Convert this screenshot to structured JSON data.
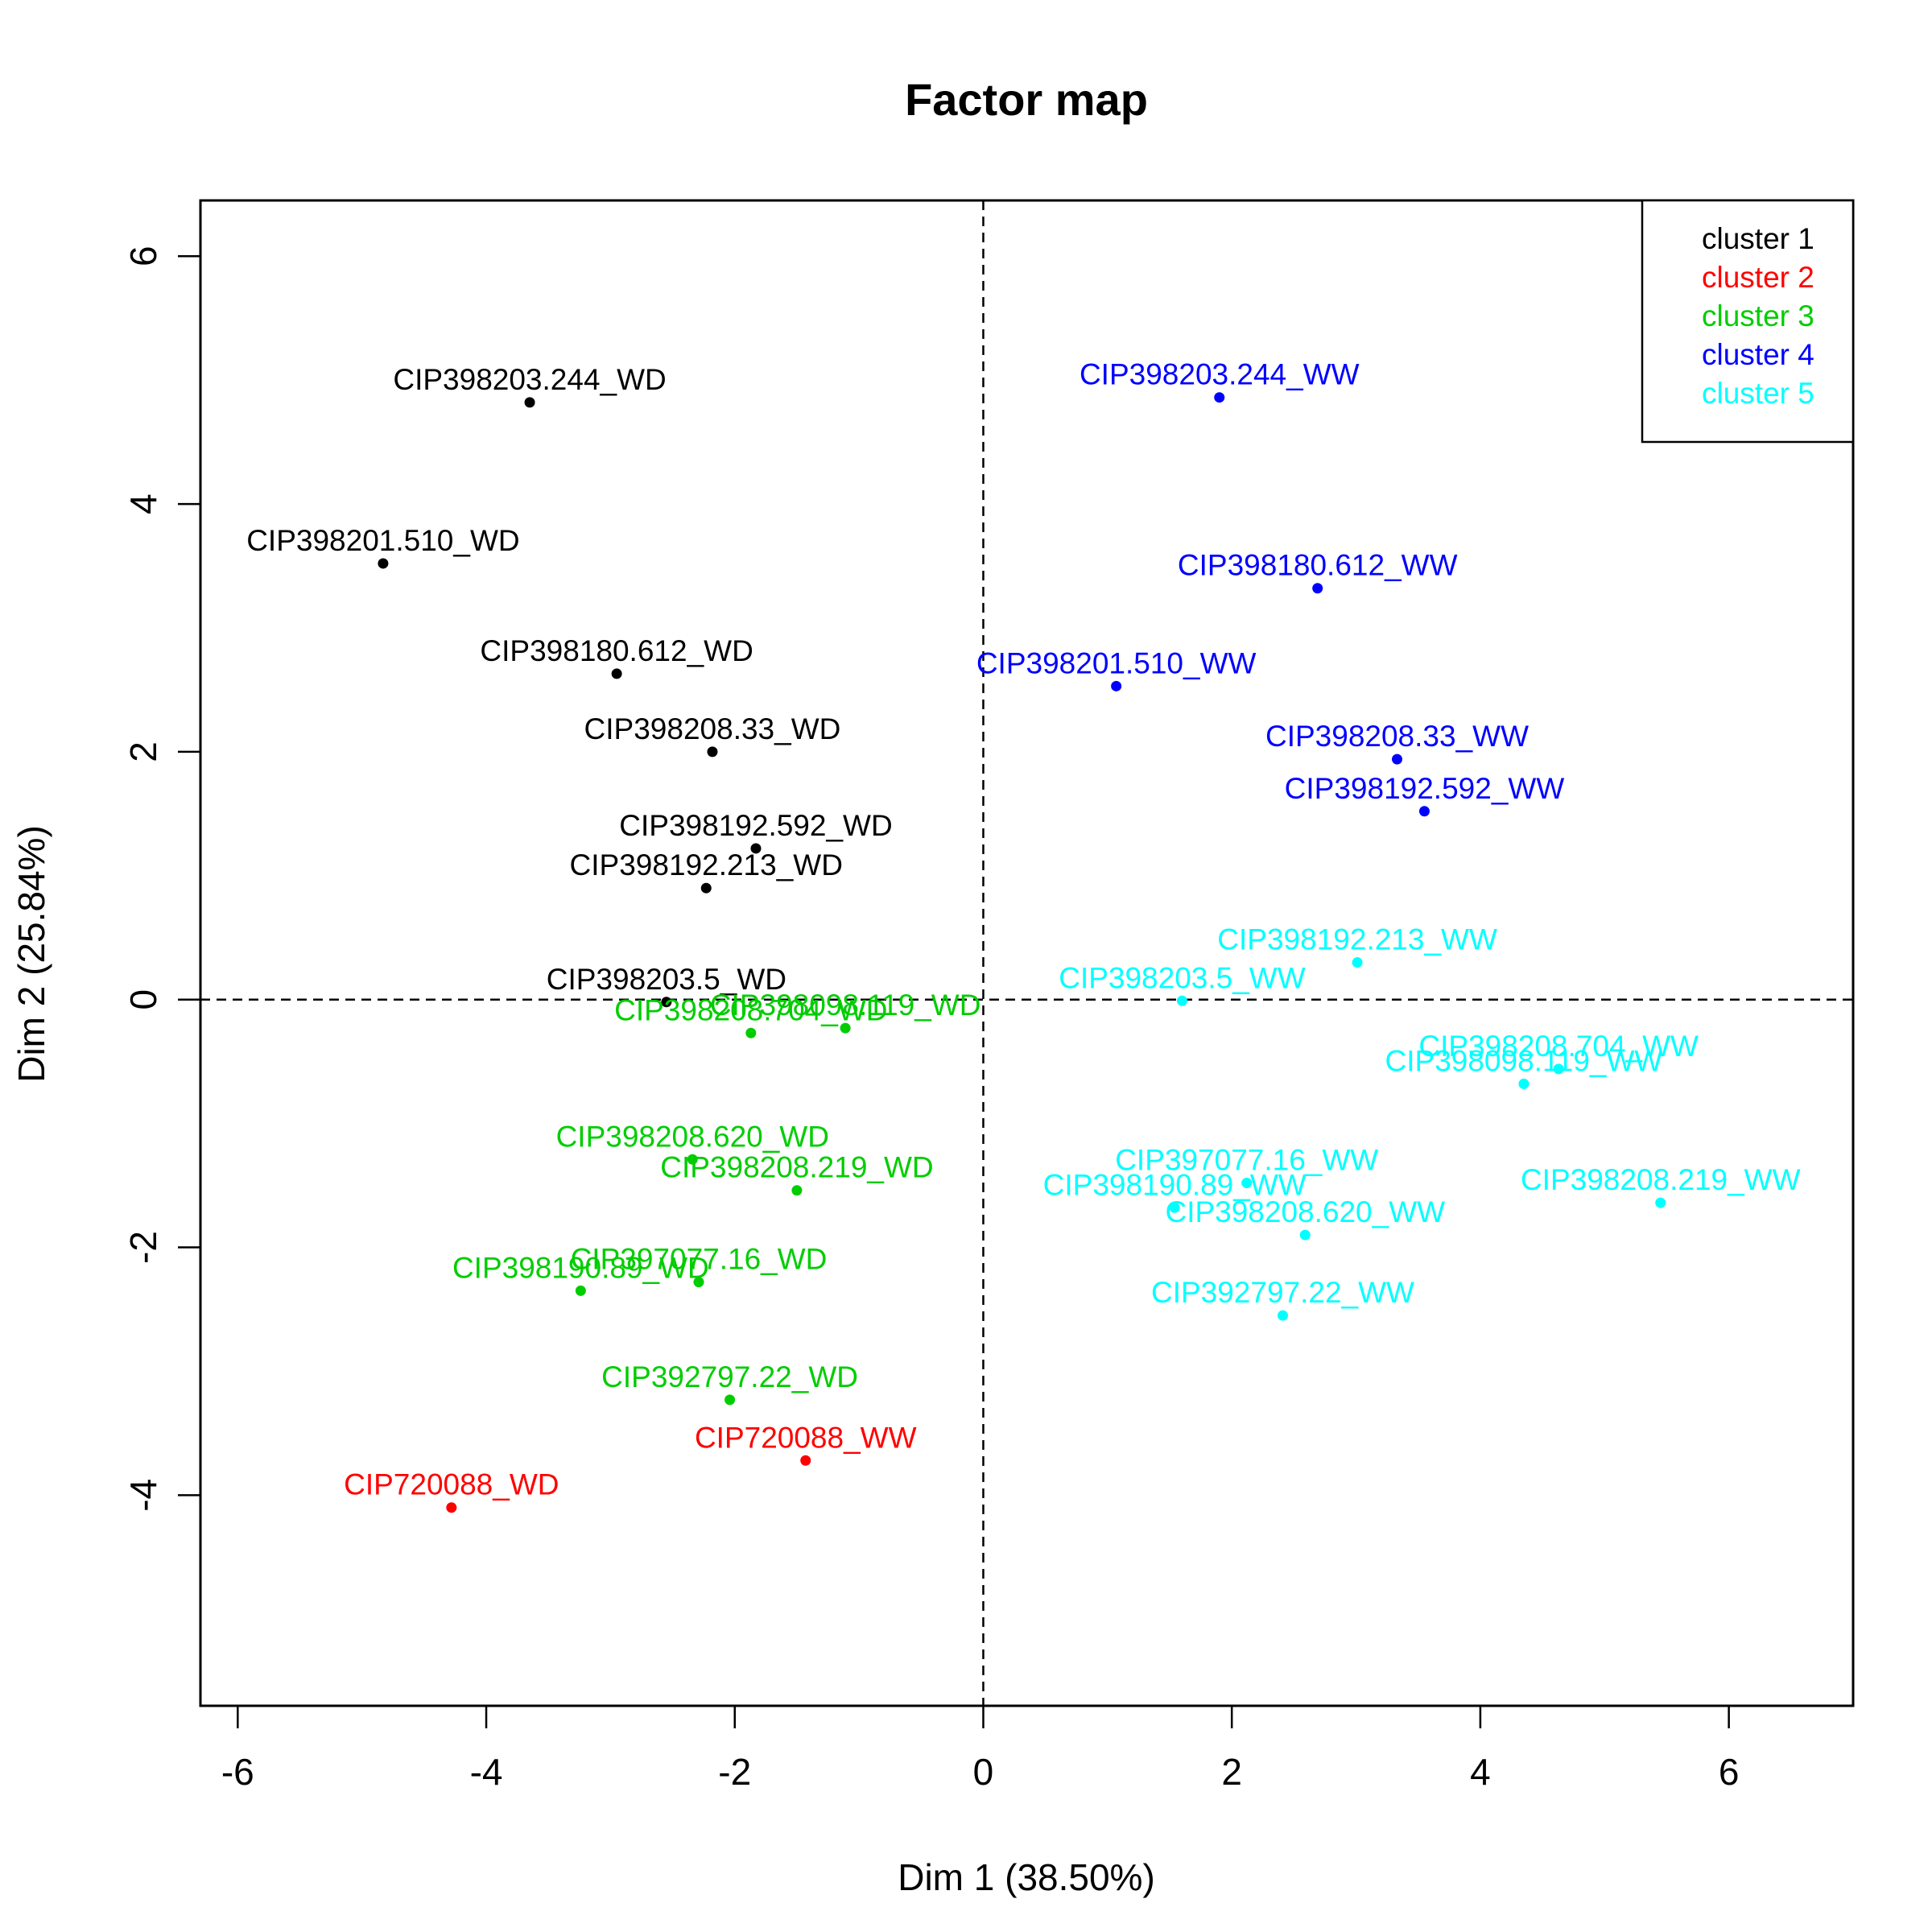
{
  "chart_data": {
    "type": "scatter",
    "title": "Factor map",
    "xlabel": "Dim 1 (38.50%)",
    "ylabel": "Dim 2 (25.84%)",
    "xlim": [
      -6.3,
      7.0
    ],
    "ylim": [
      -5.7,
      6.45
    ],
    "xticks": [
      -6,
      -4,
      -2,
      0,
      2,
      4,
      6
    ],
    "yticks": [
      -4,
      -2,
      0,
      2,
      4,
      6
    ],
    "reference_lines": {
      "x": 0,
      "y": 0,
      "style": "dashed"
    },
    "legend_position": "top-right",
    "colors": {
      "cluster 1": "#000000",
      "cluster 2": "#ff0000",
      "cluster 3": "#00cd00",
      "cluster 4": "#0000ff",
      "cluster 5": "#00ffff"
    },
    "series": [
      {
        "name": "cluster 1",
        "points": [
          {
            "label": "CIP398203.244_WD",
            "x": -3.65,
            "y": 4.82
          },
          {
            "label": "CIP398201.510_WD",
            "x": -4.83,
            "y": 3.52
          },
          {
            "label": "CIP398180.612_WD",
            "x": -2.95,
            "y": 2.63
          },
          {
            "label": "CIP398208.33_WD",
            "x": -2.18,
            "y": 2.0
          },
          {
            "label": "CIP398192.592_WD",
            "x": -1.83,
            "y": 1.22
          },
          {
            "label": "CIP398192.213_WD",
            "x": -2.23,
            "y": 0.9
          },
          {
            "label": "CIP398203.5_WD",
            "x": -2.55,
            "y": -0.02
          }
        ]
      },
      {
        "name": "cluster 2",
        "points": [
          {
            "label": "CIP720088_WD",
            "x": -4.28,
            "y": -4.1
          },
          {
            "label": "CIP720088_WW",
            "x": -1.43,
            "y": -3.72
          }
        ]
      },
      {
        "name": "cluster 3",
        "points": [
          {
            "label": "CIP398098.119_WD",
            "x": -1.11,
            "y": -0.23
          },
          {
            "label": "CIP398208.704_WD",
            "x": -1.87,
            "y": -0.27
          },
          {
            "label": "CIP398208.620_WD",
            "x": -2.34,
            "y": -1.29
          },
          {
            "label": "CIP398208.219_WD",
            "x": -1.5,
            "y": -1.54
          },
          {
            "label": "CIP397077.16_WD",
            "x": -2.29,
            "y": -2.28
          },
          {
            "label": "CIP398190.89_WD",
            "x": -3.24,
            "y": -2.35
          },
          {
            "label": "CIP392797.22_WD",
            "x": -2.04,
            "y": -3.23
          }
        ]
      },
      {
        "name": "cluster 4",
        "points": [
          {
            "label": "CIP398203.244_WW",
            "x": 1.9,
            "y": 4.86
          },
          {
            "label": "CIP398180.612_WW",
            "x": 2.69,
            "y": 3.32
          },
          {
            "label": "CIP398201.510_WW",
            "x": 1.07,
            "y": 2.53
          },
          {
            "label": "CIP398208.33_WW",
            "x": 3.33,
            "y": 1.94
          },
          {
            "label": "CIP398192.592_WW",
            "x": 3.55,
            "y": 1.52
          }
        ]
      },
      {
        "name": "cluster 5",
        "points": [
          {
            "label": "CIP398192.213_WW",
            "x": 3.01,
            "y": 0.3
          },
          {
            "label": "CIP398203.5_WW",
            "x": 1.6,
            "y": -0.01
          },
          {
            "label": "CIP398208.704_WW",
            "x": 4.63,
            "y": -0.56
          },
          {
            "label": "CIP398098.119_WW",
            "x": 4.35,
            "y": -0.68
          },
          {
            "label": "CIP397077.16_WW",
            "x": 2.12,
            "y": -1.48
          },
          {
            "label": "CIP398190.89_WW",
            "x": 1.54,
            "y": -1.68
          },
          {
            "label": "CIP398208.219_WW",
            "x": 5.45,
            "y": -1.64
          },
          {
            "label": "CIP398208.620_WW",
            "x": 2.59,
            "y": -1.9
          },
          {
            "label": "CIP392797.22_WW",
            "x": 2.41,
            "y": -2.55
          }
        ]
      }
    ]
  }
}
